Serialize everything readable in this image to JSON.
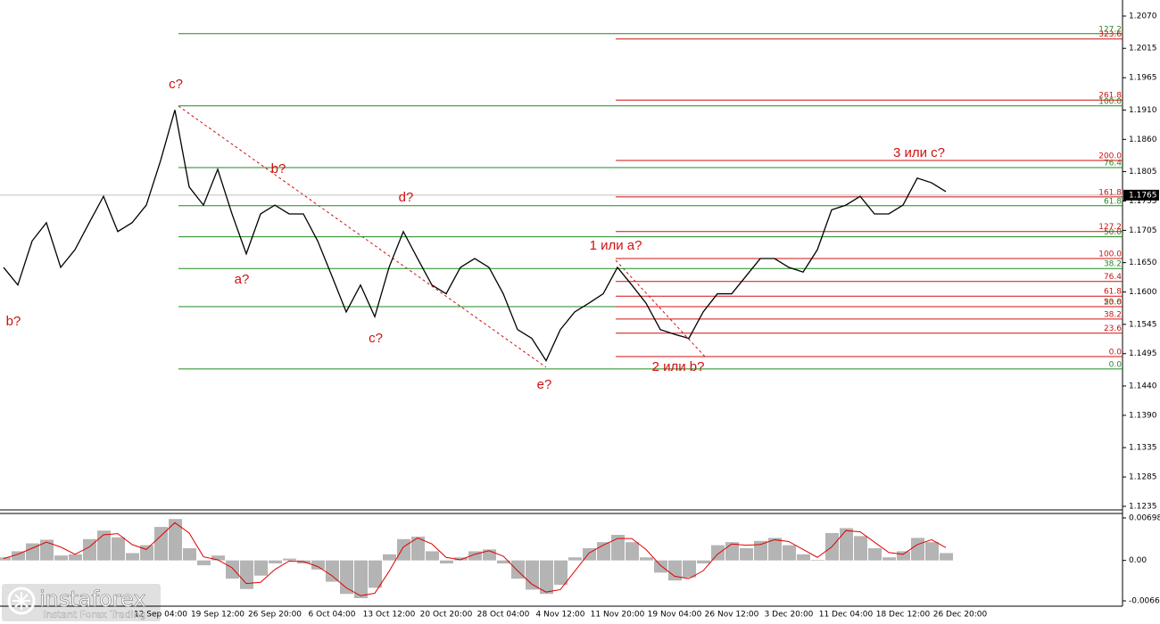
{
  "chart_data": {
    "type": "line",
    "categories": [
      null,
      null,
      null,
      null,
      null,
      null,
      null,
      null,
      null,
      null,
      null,
      "12 Sep 04:00",
      null,
      null,
      null,
      "19 Sep 12:00",
      null,
      null,
      null,
      "26 Sep 20:00",
      null,
      null,
      null,
      "6 Oct 04:00",
      null,
      null,
      null,
      "13 Oct 12:00",
      null,
      null,
      null,
      "20 Oct 20:00",
      null,
      null,
      null,
      "28 Oct 04:00",
      null,
      null,
      null,
      "4 Nov 12:00",
      null,
      null,
      null,
      "11 Nov 20:00",
      null,
      null,
      null,
      "19 Nov 04:00",
      null,
      null,
      null,
      "26 Nov 12:00",
      null,
      null,
      null,
      "3 Dec 20:00",
      null,
      null,
      null,
      "11 Dec 04:00",
      null,
      null,
      null,
      "18 Dec 12:00",
      null,
      null,
      null,
      "26 Dec 20:00"
    ],
    "values": [
      1.1642,
      1.1612,
      1.1687,
      1.1718,
      1.1642,
      1.1672,
      1.1718,
      1.1763,
      1.1703,
      1.1718,
      1.1748,
      1.1824,
      1.191,
      1.1779,
      1.1748,
      1.1809,
      1.1733,
      1.1665,
      1.1733,
      1.1748,
      1.1733,
      1.1733,
      1.1687,
      1.1627,
      1.1566,
      1.1612,
      1.1558,
      1.1642,
      1.1703,
      1.1657,
      1.1612,
      1.1597,
      1.1642,
      1.1657,
      1.1642,
      1.1597,
      1.1536,
      1.1521,
      1.1483,
      1.1536,
      1.1566,
      1.1581,
      1.1597,
      1.1642,
      1.1612,
      1.1581,
      1.1536,
      1.1528,
      1.1521,
      1.1566,
      1.1597,
      1.1597,
      1.1627,
      1.1657,
      1.1657,
      1.1642,
      1.1634,
      1.1672,
      1.174,
      1.1748,
      1.1763,
      1.1733,
      1.1733,
      1.1748,
      1.1794,
      1.1786,
      1.1771,
      null
    ],
    "color": "#000000",
    "ylim": [
      1.1235,
      1.207
    ],
    "yticks": [
      {
        "value": 1.207,
        "label": "1.2070"
      },
      {
        "value": 1.2015,
        "label": "1.2015"
      },
      {
        "value": 1.1965,
        "label": "1.1965"
      },
      {
        "value": 1.191,
        "label": "1.1910"
      },
      {
        "value": 1.186,
        "label": "1.1860"
      },
      {
        "value": 1.1805,
        "label": "1.1805"
      },
      {
        "value": 1.1755,
        "label": "1.1755"
      },
      {
        "value": 1.1705,
        "label": "1.1705"
      },
      {
        "value": 1.165,
        "label": "1.1650"
      },
      {
        "value": 1.16,
        "label": "1.1600"
      },
      {
        "value": 1.1545,
        "label": "1.1545"
      },
      {
        "value": 1.1495,
        "label": "1.1495"
      },
      {
        "value": 1.144,
        "label": "1.1440"
      },
      {
        "value": 1.139,
        "label": "1.1390"
      },
      {
        "value": 1.1335,
        "label": "1.1335"
      },
      {
        "value": 1.1285,
        "label": "1.1285"
      },
      {
        "value": 1.1235,
        "label": "1.1235"
      }
    ],
    "last_price": {
      "value": 1.1765,
      "label": "1.1765"
    },
    "fib_levels_left": {
      "color": "#1f8a1f",
      "levels": [
        {
          "level": "127.2",
          "price": 1.204
        },
        {
          "level": "100.0",
          "price": 1.1917
        },
        {
          "level": "76.4",
          "price": 1.1812
        },
        {
          "level": "61.8",
          "price": 1.1747
        },
        {
          "level": "50.0",
          "price": 1.1694
        },
        {
          "level": "38.2",
          "price": 1.164
        },
        {
          "level": "23.6",
          "price": 1.1575
        },
        {
          "level": "0.0",
          "price": 1.1469
        }
      ]
    },
    "fib_levels_right": {
      "color": "#d01010",
      "levels": [
        {
          "level": "323.6",
          "price": 1.2031
        },
        {
          "level": "261.8",
          "price": 1.1927
        },
        {
          "level": "200.0",
          "price": 1.1824
        },
        {
          "level": "161.8",
          "price": 1.1762
        },
        {
          "level": "127.2",
          "price": 1.1703
        },
        {
          "level": "100.0",
          "price": 1.1657
        },
        {
          "level": "76.4",
          "price": 1.1618
        },
        {
          "level": "61.8",
          "price": 1.1593
        },
        {
          "level": "50.0",
          "price": 1.1575
        },
        {
          "level": "38.2",
          "price": 1.1554
        },
        {
          "level": "23.6",
          "price": 1.153
        },
        {
          "level": "0.0",
          "price": 1.149
        }
      ]
    },
    "annotations": [
      "b?",
      "c?",
      "a?",
      "b?",
      "c?",
      "d?",
      "e?",
      "1 или a?",
      "2 или b?",
      "3 или с?"
    ],
    "oscillator": {
      "type": "bar",
      "color": "#b4b4b4",
      "signal_color": "#e00000",
      "ylim": [
        -0.00664,
        0.00698
      ],
      "yticks": [
        {
          "value": 0.00698,
          "label": "0.00698"
        },
        {
          "value": 0,
          "label": "0.00"
        },
        {
          "value": -0.00664,
          "label": "-0.00664"
        }
      ],
      "values": [
        0.0005,
        0.0015,
        0.0028,
        0.0034,
        0.0008,
        0.001,
        0.0035,
        0.0049,
        0.0038,
        0.0012,
        0.0025,
        0.0055,
        0.0068,
        0.002,
        -0.0008,
        0.0008,
        -0.003,
        -0.0047,
        -0.0025,
        -0.0005,
        0.0003,
        -0.0005,
        -0.0015,
        -0.0035,
        -0.0055,
        -0.0062,
        -0.0045,
        0.001,
        0.0035,
        0.0039,
        0.0015,
        -0.0005,
        0.0005,
        0.0015,
        0.0018,
        -0.0005,
        -0.003,
        -0.0048,
        -0.0055,
        -0.004,
        0.0005,
        0.002,
        0.003,
        0.0042,
        0.003,
        0.0005,
        -0.002,
        -0.0033,
        -0.0028,
        -0.0005,
        0.0025,
        0.003,
        0.002,
        0.0032,
        0.0037,
        0.0025,
        0.001,
        0.0001,
        0.0045,
        0.0053,
        0.004,
        0.002,
        0.0005,
        0.0015,
        0.0037,
        0.003,
        0.0012,
        null
      ],
      "signal": [
        0.0003,
        0.001,
        0.002,
        0.003,
        0.0022,
        0.001,
        0.0022,
        0.0042,
        0.0044,
        0.0026,
        0.0018,
        0.004,
        0.0062,
        0.0045,
        0.0006,
        0.0001,
        -0.0012,
        -0.0038,
        -0.0036,
        -0.0015,
        -0.0001,
        -0.0002,
        -0.001,
        -0.0025,
        -0.0045,
        -0.0058,
        -0.0054,
        -0.0018,
        0.0022,
        0.0037,
        0.0027,
        0.0005,
        0.0001,
        0.001,
        0.0016,
        0.0007,
        -0.0017,
        -0.0039,
        -0.0052,
        -0.0048,
        -0.0018,
        0.0012,
        0.0025,
        0.0036,
        0.0036,
        0.0018,
        -0.0008,
        -0.0026,
        -0.003,
        -0.0017,
        0.001,
        0.0027,
        0.0025,
        0.0026,
        0.0034,
        0.0031,
        0.0018,
        0.0005,
        0.0022,
        0.0049,
        0.0047,
        0.003,
        0.0013,
        0.001,
        0.0026,
        0.0034,
        0.0021,
        null
      ]
    },
    "watermark": "instaforex",
    "watermark_subtitle": "Instant Forex Trading"
  }
}
